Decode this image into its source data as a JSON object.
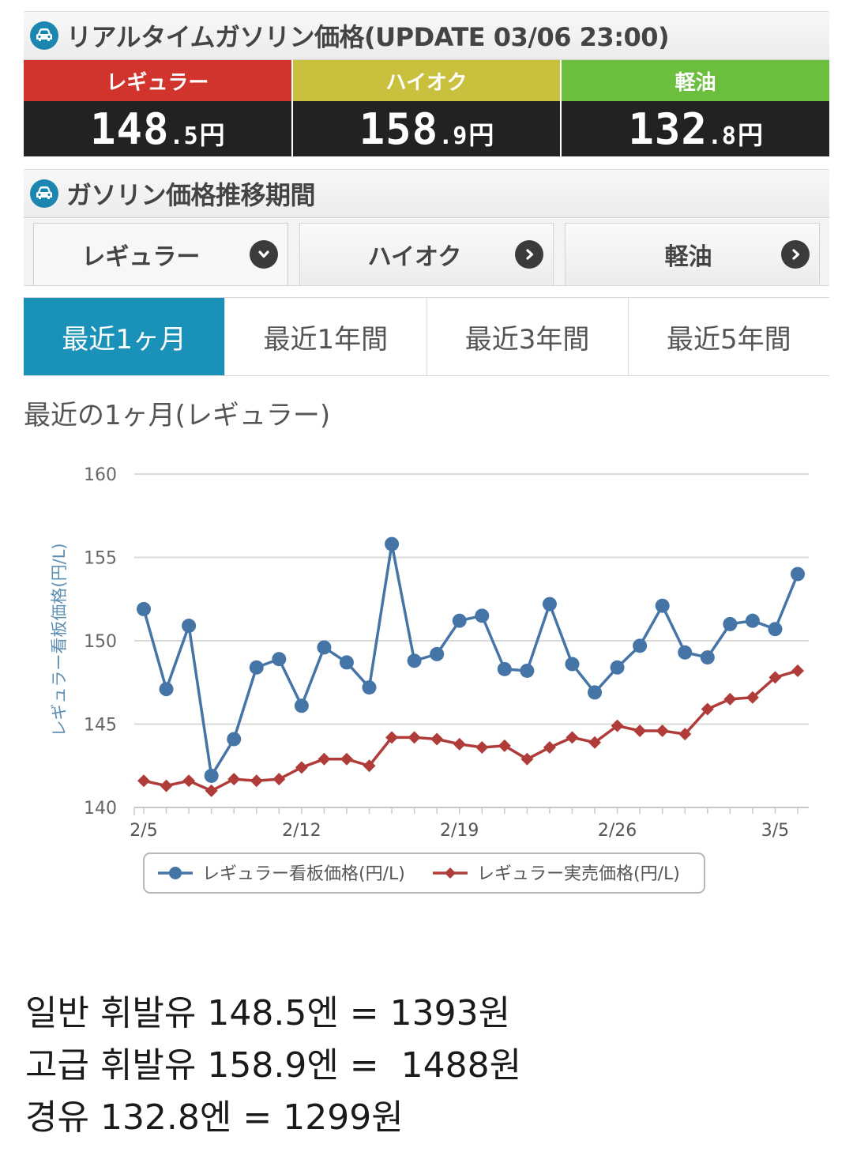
{
  "realtime": {
    "title": "リアルタイムガソリン価格(UPDATE 03/06 23:00)",
    "prices": [
      {
        "label": "レギュラー",
        "int": "148",
        "dec": ".5",
        "unit": "円",
        "color": "#d0342c"
      },
      {
        "label": "ハイオク",
        "int": "158",
        "dec": ".9",
        "unit": "円",
        "color": "#c9c13e"
      },
      {
        "label": "軽油",
        "int": "132",
        "dec": ".8",
        "unit": "円",
        "color": "#6cbf3e"
      }
    ]
  },
  "trend": {
    "title": "ガソリン価格推移期間",
    "fuel_tabs": [
      {
        "label": "レギュラー",
        "icon": "chevron-down-icon",
        "active": true
      },
      {
        "label": "ハイオク",
        "icon": "chevron-right-icon",
        "active": false
      },
      {
        "label": "軽油",
        "icon": "chevron-right-icon",
        "active": false
      }
    ],
    "period_tabs": [
      {
        "label": "最近1ヶ月",
        "active": true
      },
      {
        "label": "最近1年間",
        "active": false
      },
      {
        "label": "最近3年間",
        "active": false
      },
      {
        "label": "最近5年間",
        "active": false
      }
    ],
    "chart_title": "最近の1ヶ月(レギュラー)"
  },
  "accent_color": "#1a91b9",
  "chart_data": {
    "type": "line",
    "title": "最近の1ヶ月(レギュラー)",
    "ylabel": "レギュラー看板価格(円/L)",
    "xlabel": "",
    "ylim": [
      140,
      160
    ],
    "yticks": [
      140,
      145,
      150,
      155,
      160
    ],
    "x_tick_labels": [
      "2/5",
      "2/12",
      "2/19",
      "2/26",
      "3/5"
    ],
    "x_tick_index": [
      0,
      7,
      14,
      21,
      28
    ],
    "grid": true,
    "legend_placement": "bottom",
    "series": [
      {
        "name": "レギュラー看板価格(円/L)",
        "color": "#4575a6",
        "marker": "circle",
        "values": [
          151.9,
          147.1,
          150.9,
          141.9,
          144.1,
          148.4,
          148.9,
          146.1,
          149.6,
          148.7,
          147.2,
          155.8,
          148.8,
          149.2,
          151.2,
          151.5,
          148.3,
          148.2,
          152.2,
          148.6,
          146.9,
          148.4,
          149.7,
          152.1,
          149.3,
          149.0,
          151.0,
          151.2,
          150.7,
          154.0
        ]
      },
      {
        "name": "レギュラー実売価格(円/L)",
        "color": "#b03c3a",
        "marker": "diamond",
        "values": [
          141.6,
          141.3,
          141.6,
          141.0,
          141.7,
          141.6,
          141.7,
          142.4,
          142.9,
          142.9,
          142.5,
          144.2,
          144.2,
          144.1,
          143.8,
          143.6,
          143.7,
          142.9,
          143.6,
          144.2,
          143.9,
          144.9,
          144.6,
          144.6,
          144.4,
          145.9,
          146.5,
          146.6,
          147.8,
          148.2
        ]
      }
    ]
  },
  "notes": [
    "일반 휘발유 148.5엔 = 1393원",
    "고급 휘발유 158.9엔 =  1488원",
    "경유 132.8엔 = 1299원"
  ]
}
